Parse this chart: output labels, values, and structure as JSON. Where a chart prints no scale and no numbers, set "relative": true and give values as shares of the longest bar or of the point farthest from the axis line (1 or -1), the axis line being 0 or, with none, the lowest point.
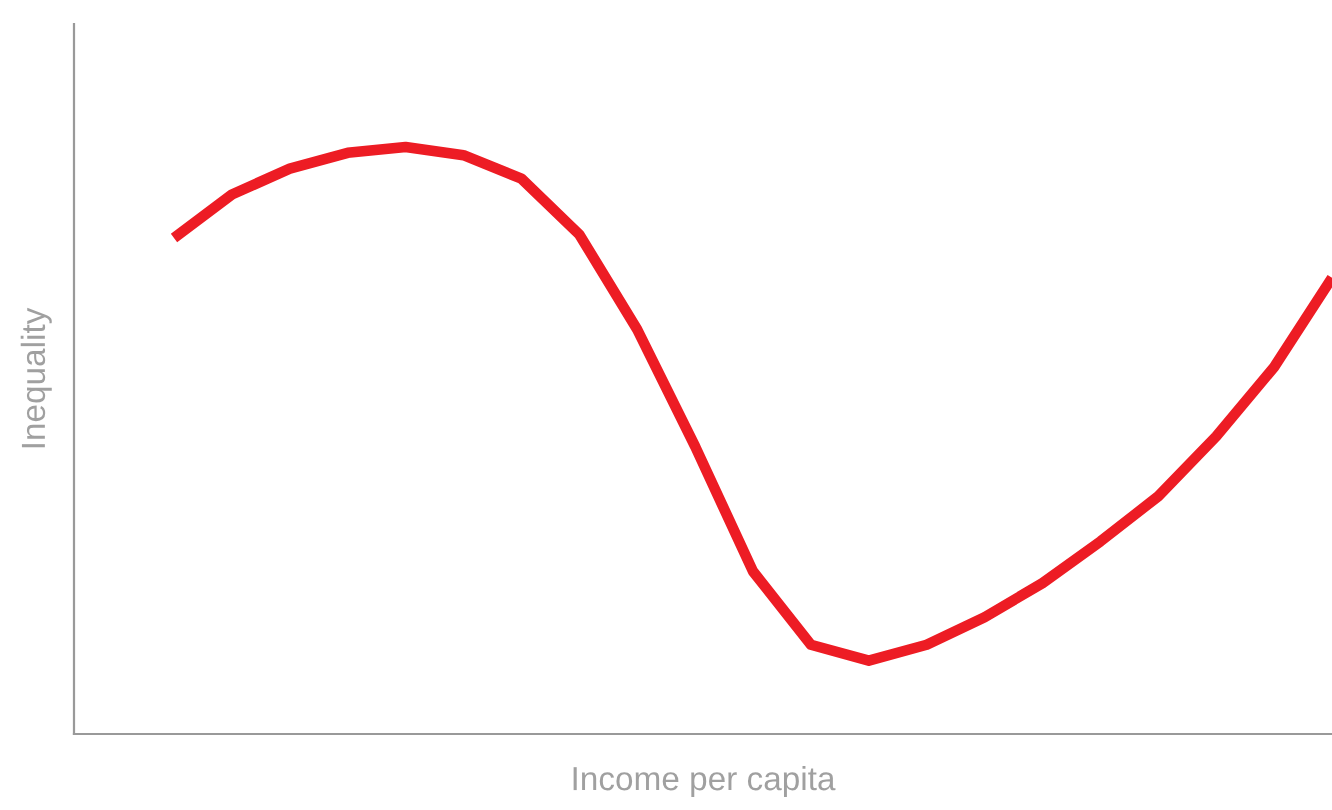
{
  "chart_data": {
    "type": "line",
    "xlabel": "Income per capita",
    "ylabel": "Inequality",
    "relative": true,
    "grid": false,
    "legend": false,
    "marker": "none",
    "line_style": "solid",
    "categories": [
      null,
      null,
      null,
      null,
      null,
      null,
      null,
      null,
      null,
      null,
      null,
      null,
      null,
      null,
      null,
      null,
      null,
      null,
      null,
      null,
      null
    ],
    "series": [
      {
        "color": "#ed1c24",
        "values": [
          0.845,
          0.919,
          0.963,
          0.99,
          1,
          0.986,
          0.946,
          0.851,
          0.689,
          0.49,
          0.277,
          0.152,
          0.125,
          0.152,
          0.199,
          0.257,
          0.328,
          0.405,
          0.507,
          0.625,
          0.777
        ]
      }
    ]
  }
}
